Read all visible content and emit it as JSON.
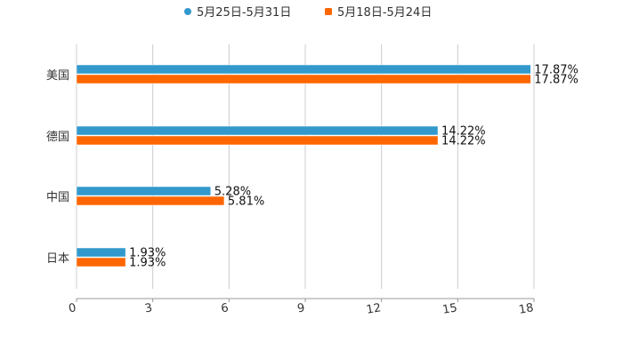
{
  "chart_data": {
    "type": "bar",
    "orientation": "horizontal",
    "categories": [
      "美国",
      "德国",
      "中国",
      "日本"
    ],
    "series": [
      {
        "name": "5月25日-5月31日",
        "color": "#3399cc",
        "values": [
          17.87,
          14.22,
          5.28,
          1.93
        ],
        "labels": [
          "17.87%",
          "14.22%",
          "5.28%",
          "1.93%"
        ]
      },
      {
        "name": "5月18日-5月24日",
        "color": "#ff6600",
        "values": [
          17.87,
          14.22,
          5.81,
          1.93
        ],
        "labels": [
          "17.87%",
          "14.22%",
          "5.81%",
          "1.93%"
        ]
      }
    ],
    "xlim": [
      0,
      18
    ],
    "xticks": [
      "0",
      "3",
      "6",
      "9",
      "12",
      "15",
      "18"
    ],
    "grid": true,
    "legend": "top-center",
    "title": "",
    "xlabel": "",
    "ylabel": ""
  }
}
